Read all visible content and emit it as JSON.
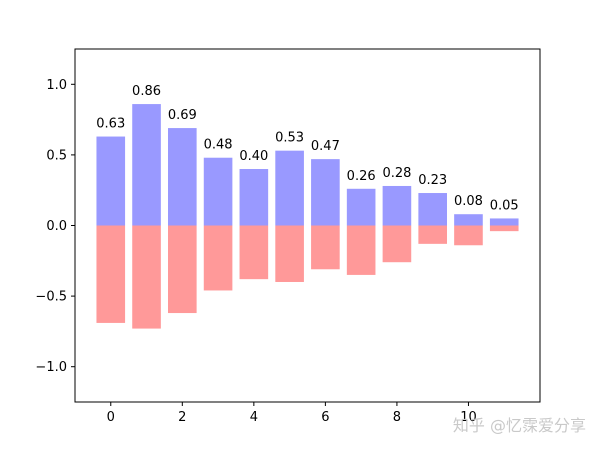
{
  "chart_data": {
    "type": "bar",
    "x": [
      0,
      1,
      2,
      3,
      4,
      5,
      6,
      7,
      8,
      9,
      10,
      11
    ],
    "series": [
      {
        "color": "#9999ff",
        "values": [
          0.63,
          0.86,
          0.69,
          0.48,
          0.4,
          0.53,
          0.47,
          0.26,
          0.28,
          0.23,
          0.08,
          0.05
        ],
        "labels": [
          "0.63",
          "0.86",
          "0.69",
          "0.48",
          "0.40",
          "0.53",
          "0.47",
          "0.26",
          "0.28",
          "0.23",
          "0.08",
          "0.05"
        ]
      },
      {
        "color": "#ff9999",
        "values": [
          -0.69,
          -0.73,
          -0.62,
          -0.46,
          -0.38,
          -0.4,
          -0.31,
          -0.35,
          -0.26,
          -0.13,
          -0.14,
          -0.04
        ]
      }
    ],
    "xlim": [
      -1,
      12
    ],
    "ylim": [
      -1.25,
      1.25
    ],
    "xticks": [
      0,
      2,
      4,
      6,
      8,
      10
    ],
    "xtick_labels": [
      "0",
      "2",
      "4",
      "6",
      "8",
      "10"
    ],
    "yticks": [
      -1.0,
      -0.5,
      0.0,
      0.5,
      1.0
    ],
    "ytick_labels": [
      "−1.0",
      "−0.5",
      "0.0",
      "0.5",
      "1.0"
    ],
    "grid": false,
    "title": "",
    "xlabel": "",
    "ylabel": ""
  },
  "watermark": "知乎 @忆霂爱分享"
}
